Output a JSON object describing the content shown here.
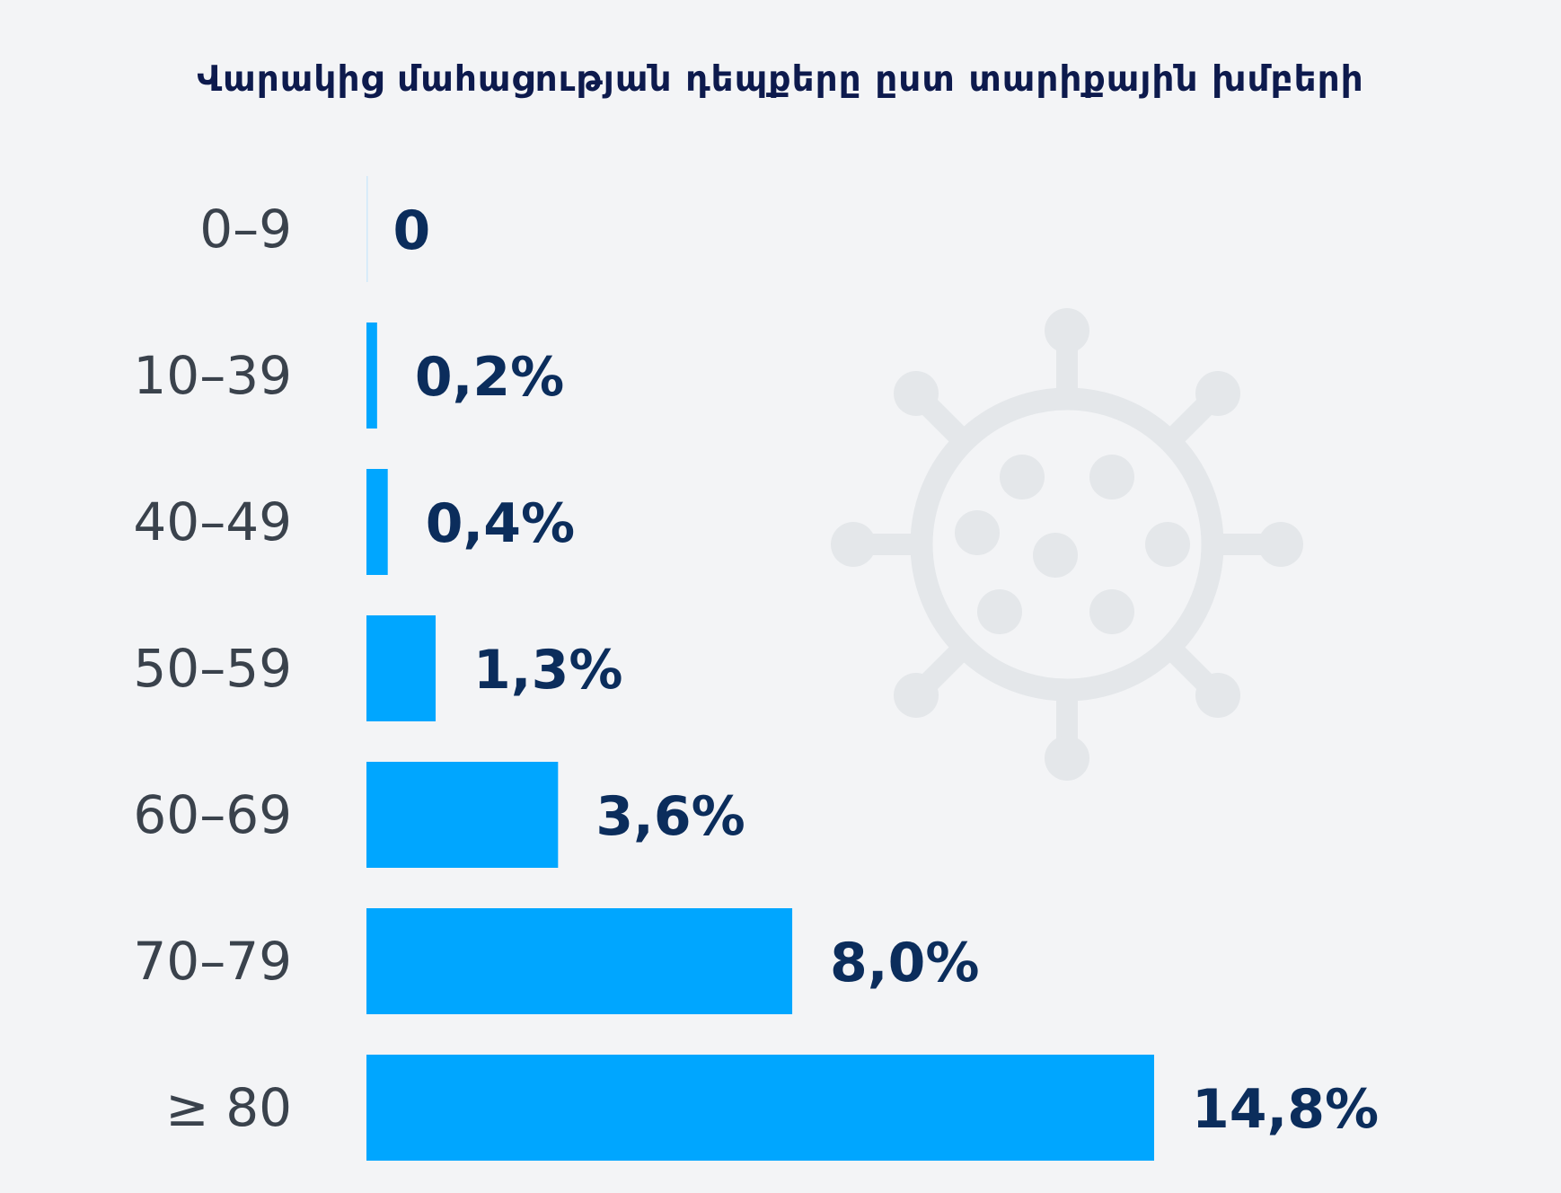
{
  "chart_data": {
    "type": "bar",
    "orientation": "horizontal",
    "title": "Վարակից մահացության դեպքերը ըստ տարիքային խմբերի",
    "categories": [
      "0–9",
      "10–39",
      "40–49",
      "50–59",
      "60–69",
      "70–79",
      "≥ 80"
    ],
    "values": [
      0,
      0.2,
      0.4,
      1.3,
      3.6,
      8.0,
      14.8
    ],
    "value_labels": [
      "0",
      "0,2%",
      "0,4%",
      "1,3%",
      "3,6%",
      "8,0%",
      "14,8%"
    ],
    "unit": "%",
    "xlim": [
      0,
      14.8
    ],
    "grid": false,
    "legend": "none",
    "colors": {
      "bar": "#00a6ff",
      "value_text": "#0b2d5c",
      "category_text": "#3a424c",
      "title_text": "#0d1a4d",
      "background": "#f3f4f6",
      "decoration": "#e4e7ea"
    },
    "icons": [
      "virus-icon"
    ]
  }
}
